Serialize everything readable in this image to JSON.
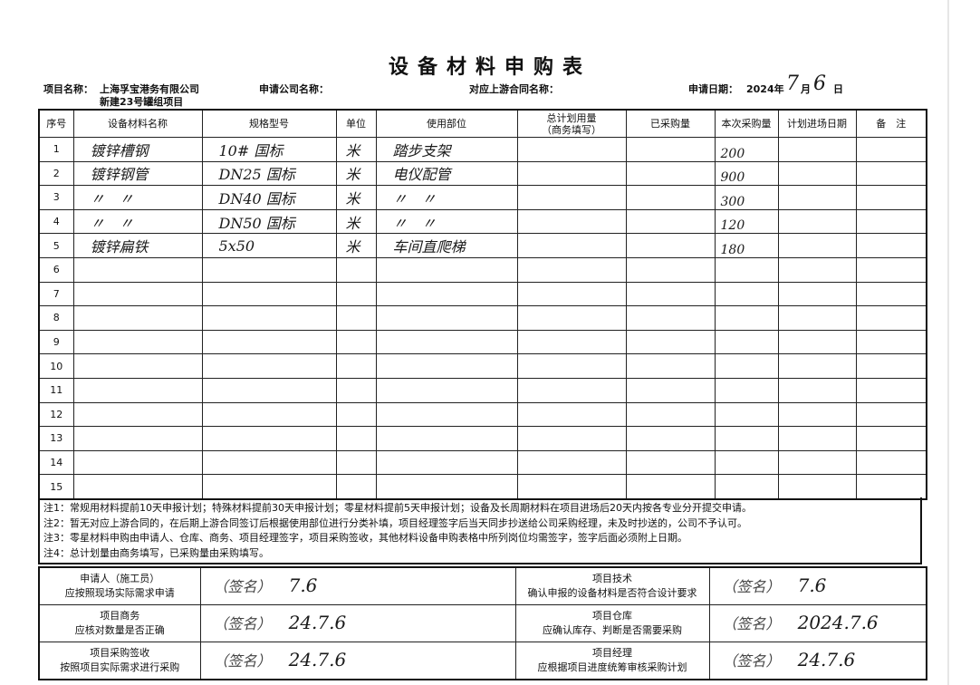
{
  "title": "设备材料申购表",
  "header": {
    "project_label": "项目名称：",
    "project_line1": "上海孚宝港务有限公司",
    "project_line2": "新建23号罐组项目",
    "company_label": "申请公司名称：",
    "contract_label": "对应上游合同名称：",
    "date_label": "申请日期：",
    "date_year": "2024年",
    "date_month": "7",
    "date_month_unit": "月",
    "date_day": "6",
    "date_day_unit": "日"
  },
  "columns": [
    "序号",
    "设备材料名称",
    "规格型号",
    "单位",
    "使用部位",
    "总计划用量\n（商务填写）",
    "已采购量",
    "本次采购量",
    "计划进场日期",
    "备　注"
  ],
  "rows": [
    {
      "no": "1",
      "name": "镀锌槽钢",
      "spec": "10# 国标",
      "unit": "米",
      "location": "踏步支架",
      "total": "",
      "purchased": "",
      "qty": "200",
      "date": "",
      "remark": ""
    },
    {
      "no": "2",
      "name": "镀锌钢管",
      "spec": "DN25 国标",
      "unit": "米",
      "location": "电仪配管",
      "total": "",
      "purchased": "",
      "qty": "900",
      "date": "",
      "remark": ""
    },
    {
      "no": "3",
      "name": "〃　〃",
      "spec": "DN40 国标",
      "unit": "米",
      "location": "〃　〃",
      "total": "",
      "purchased": "",
      "qty": "300",
      "date": "",
      "remark": ""
    },
    {
      "no": "4",
      "name": "〃　〃",
      "spec": "DN50 国标",
      "unit": "米",
      "location": "〃　〃",
      "total": "",
      "purchased": "",
      "qty": "120",
      "date": "",
      "remark": ""
    },
    {
      "no": "5",
      "name": "镀锌扁铁",
      "spec": "5x50",
      "unit": "米",
      "location": "车间直爬梯",
      "total": "",
      "purchased": "",
      "qty": "180",
      "date": "",
      "remark": ""
    },
    {
      "no": "6"
    },
    {
      "no": "7"
    },
    {
      "no": "8"
    },
    {
      "no": "9"
    },
    {
      "no": "10"
    },
    {
      "no": "11"
    },
    {
      "no": "12"
    },
    {
      "no": "13"
    },
    {
      "no": "14"
    },
    {
      "no": "15"
    }
  ],
  "notes": [
    "注1：常规用材料提前10天申报计划；特殊材料提前30天申报计划；零星材料提前5天申报计划；设备及长周期材料在项目进场后20天内按各专业分开提交申请。",
    "注2：暂无对应上游合同的，在后期上游合同签订后根据使用部位进行分类补填，项目经理签字后当天同步抄送给公司采购经理，未及时抄送的，公司不予认可。",
    "注3：零星材料申购由申请人、仓库、商务、项目经理签字，项目采购签收，其他材料设备申购表格中所列岗位均需签字，签字后面必须附上日期。",
    "注4：总计划量由商务填写，已采购量由采购填写。"
  ],
  "signatures": [
    {
      "role": "申请人（施工员）",
      "desc": "应按照现场实际需求申请",
      "signature": "（签名）",
      "date": "7.6"
    },
    {
      "role": "项目技术",
      "desc": "确认申报的设备材料是否符合设计要求",
      "signature": "（签名）",
      "date": "7.6"
    },
    {
      "role": "项目商务",
      "desc": "应核对数量是否正确",
      "signature": "（签名）",
      "date": "24.7.6"
    },
    {
      "role": "项目仓库",
      "desc": "应确认库存、判断是否需要采购",
      "signature": "（签名）",
      "date": "2024.7.6"
    },
    {
      "role": "项目采购签收",
      "desc": "按照项目实际需求进行采购",
      "signature": "（签名）",
      "date": "24.7.6"
    },
    {
      "role": "项目经理",
      "desc": "应根据项目进度统筹审核采购计划",
      "signature": "（签名）",
      "date": "24.7.6"
    }
  ]
}
